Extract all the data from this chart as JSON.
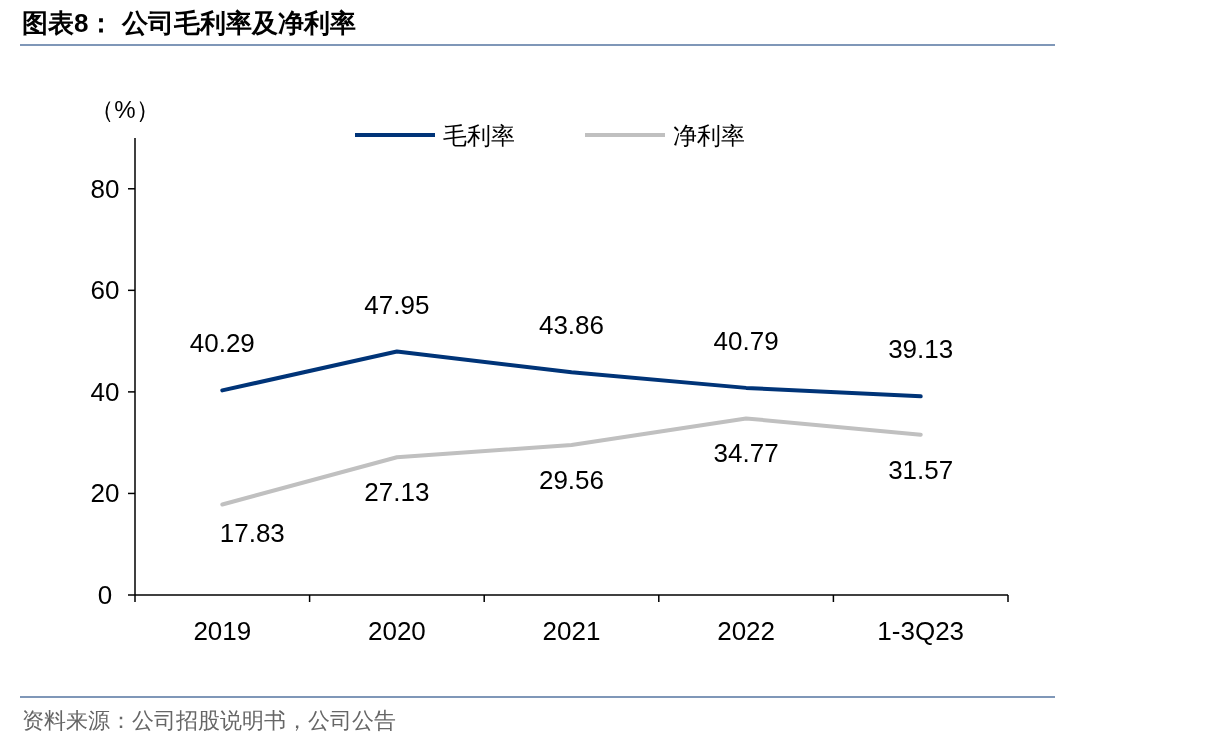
{
  "chart_data": {
    "type": "line",
    "title": "图表8： 公司毛利率及净利率",
    "ylabel": "（%）",
    "categories": [
      "2019",
      "2020",
      "2021",
      "2022",
      "1-3Q23"
    ],
    "series": [
      {
        "name": "毛利率",
        "color": "#003478",
        "values": [
          40.29,
          47.95,
          43.86,
          40.79,
          39.13
        ]
      },
      {
        "name": "净利率",
        "color": "#c0c0c0",
        "values": [
          17.83,
          27.13,
          29.56,
          34.77,
          31.57
        ]
      }
    ],
    "ylim": [
      0,
      90
    ],
    "yticks": [
      0,
      20,
      40,
      60,
      80
    ],
    "grid": false,
    "legend": "top",
    "data_labels": true,
    "marker": "none",
    "annotations": [
      "资料来源：公司招股说明书，公司公告"
    ]
  }
}
